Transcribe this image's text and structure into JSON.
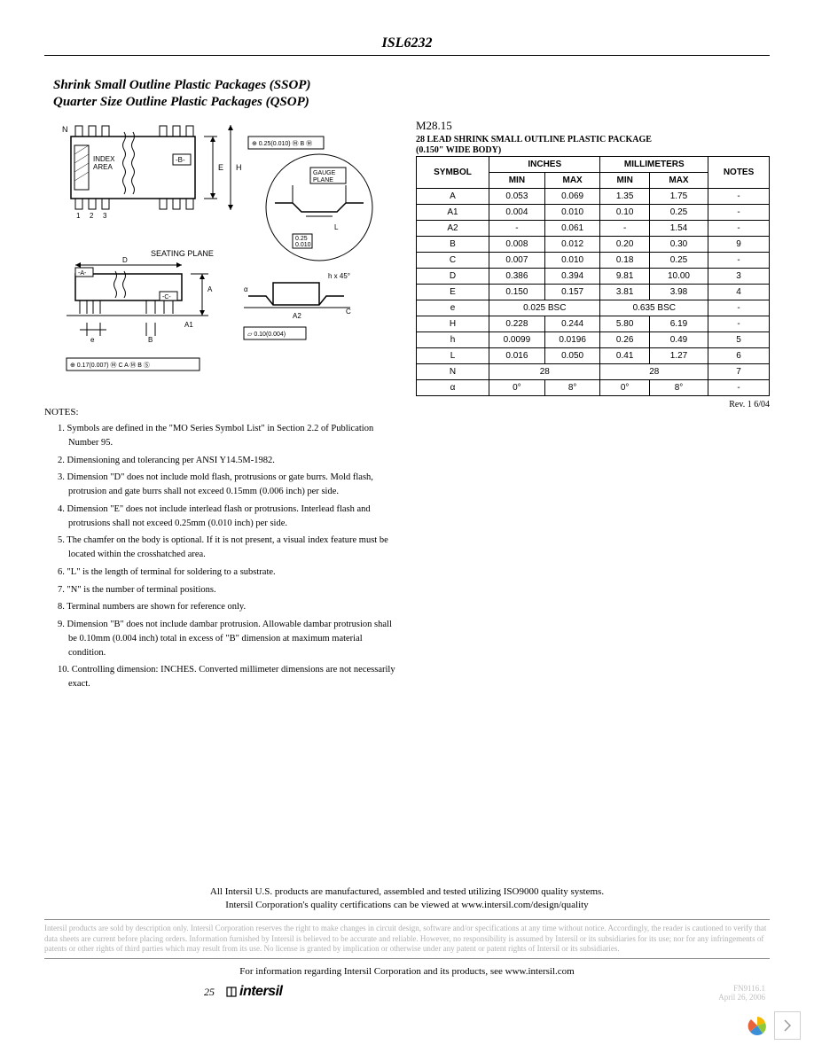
{
  "header": {
    "part_number": "ISL6232"
  },
  "section": {
    "title1": "Shrink Small Outline Plastic Packages (SSOP)",
    "title2": "Quarter Size Outline Plastic Packages (QSOP)"
  },
  "diagram": {
    "labels": {
      "index_area": "INDEX\nAREA",
      "gauge_plane": "GAUGE\nPLANE",
      "seating_plane": "SEATING PLANE",
      "n": "N",
      "one": "1",
      "two": "2",
      "three": "3",
      "h": "H",
      "e_big": "E",
      "b": "B",
      "l_big": "L",
      "a": "A",
      "a1": "A1",
      "a2": "A2",
      "c": "C",
      "d": "D",
      "e": "e",
      "alpha": "α",
      "neg_a": "-A-",
      "neg_b": "-B-",
      "neg_c": "-C-",
      "h_small": "h x 45°",
      "dim1": "0.25(0.010)",
      "dim2": "0.25\n0.010",
      "dim3": "0.10(0.004)",
      "dim4": "0.17(0.007)",
      "m_b": "M B M",
      "m_ca_b": "M C A M B S"
    }
  },
  "notes": {
    "heading": "NOTES:",
    "items": [
      "1. Symbols are defined in the \"MO Series Symbol List\" in Section 2.2 of Publication Number 95.",
      "2. Dimensioning and tolerancing per ANSI Y14.5M-1982.",
      "3. Dimension \"D\" does not include mold flash, protrusions or gate burrs. Mold flash, protrusion and gate burrs shall not exceed 0.15mm (0.006 inch) per side.",
      "4. Dimension \"E\" does not include interlead flash or protrusions. Interlead flash and protrusions shall not exceed 0.25mm (0.010 inch) per side.",
      "5. The chamfer on the body is optional. If it is not present, a visual index feature must be located within the crosshatched area.",
      "6. \"L\" is the length of terminal for soldering to a substrate.",
      "7. \"N\" is the number of terminal positions.",
      "8. Terminal numbers are shown for reference only.",
      "9. Dimension \"B\" does not include dambar protrusion. Allowable dambar protrusion shall be 0.10mm (0.004 inch) total in excess of \"B\" dimension at maximum material condition.",
      "10. Controlling dimension: INCHES. Converted millimeter dimensions are not necessarily exact."
    ]
  },
  "table": {
    "title": "M28.15",
    "subtitle1": "28 LEAD SHRINK SMALL OUTLINE PLASTIC PACKAGE",
    "subtitle2": "(0.150\" WIDE BODY)",
    "columns": {
      "symbol": "SYMBOL",
      "inches": "INCHES",
      "millimeters": "MILLIMETERS",
      "min": "MIN",
      "max": "MAX",
      "notes": "NOTES"
    },
    "rows": [
      {
        "sym": "A",
        "in_min": "0.053",
        "in_max": "0.069",
        "mm_min": "1.35",
        "mm_max": "1.75",
        "notes": "-"
      },
      {
        "sym": "A1",
        "in_min": "0.004",
        "in_max": "0.010",
        "mm_min": "0.10",
        "mm_max": "0.25",
        "notes": "-"
      },
      {
        "sym": "A2",
        "in_min": "-",
        "in_max": "0.061",
        "mm_min": "-",
        "mm_max": "1.54",
        "notes": "-"
      },
      {
        "sym": "B",
        "in_min": "0.008",
        "in_max": "0.012",
        "mm_min": "0.20",
        "mm_max": "0.30",
        "notes": "9"
      },
      {
        "sym": "C",
        "in_min": "0.007",
        "in_max": "0.010",
        "mm_min": "0.18",
        "mm_max": "0.25",
        "notes": "-"
      },
      {
        "sym": "D",
        "in_min": "0.386",
        "in_max": "0.394",
        "mm_min": "9.81",
        "mm_max": "10.00",
        "notes": "3"
      },
      {
        "sym": "E",
        "in_min": "0.150",
        "in_max": "0.157",
        "mm_min": "3.81",
        "mm_max": "3.98",
        "notes": "4"
      },
      {
        "sym": "e",
        "in_span": "0.025 BSC",
        "mm_span": "0.635 BSC",
        "notes": "-"
      },
      {
        "sym": "H",
        "in_min": "0.228",
        "in_max": "0.244",
        "mm_min": "5.80",
        "mm_max": "6.19",
        "notes": "-"
      },
      {
        "sym": "h",
        "in_min": "0.0099",
        "in_max": "0.0196",
        "mm_min": "0.26",
        "mm_max": "0.49",
        "notes": "5"
      },
      {
        "sym": "L",
        "in_min": "0.016",
        "in_max": "0.050",
        "mm_min": "0.41",
        "mm_max": "1.27",
        "notes": "6"
      },
      {
        "sym": "N",
        "in_span": "28",
        "mm_span": "28",
        "notes": "7"
      },
      {
        "sym": "α",
        "in_min": "0°",
        "in_max": "8°",
        "mm_min": "0°",
        "mm_max": "8°",
        "notes": "-"
      }
    ],
    "revision": "Rev. 1 6/04"
  },
  "footer": {
    "line1": "All Intersil U.S. products are manufactured, assembled and tested utilizing ISO9000 quality systems.",
    "line2": "Intersil Corporation's quality certifications can be viewed at www.intersil.com/design/quality",
    "disclaimer": "Intersil products are sold by description only. Intersil Corporation reserves the right to make changes in circuit design, software and/or specifications at any time without notice. Accordingly, the reader is cautioned to verify that data sheets are current before placing orders. Information furnished by Intersil is believed to be accurate and reliable. However, no responsibility is assumed by Intersil or its subsidiaries for its use; nor for any infringements of patents or other rights of third parties which may result from its use. No license is granted by implication or otherwise under any patent or patent rights of Intersil or its subsidiaries.",
    "info": "For information regarding Intersil Corporation and its products, see www.intersil.com",
    "page_number": "25",
    "logo_text": "intersil",
    "fn": "FN9116.1",
    "date": "April 26, 2006"
  }
}
